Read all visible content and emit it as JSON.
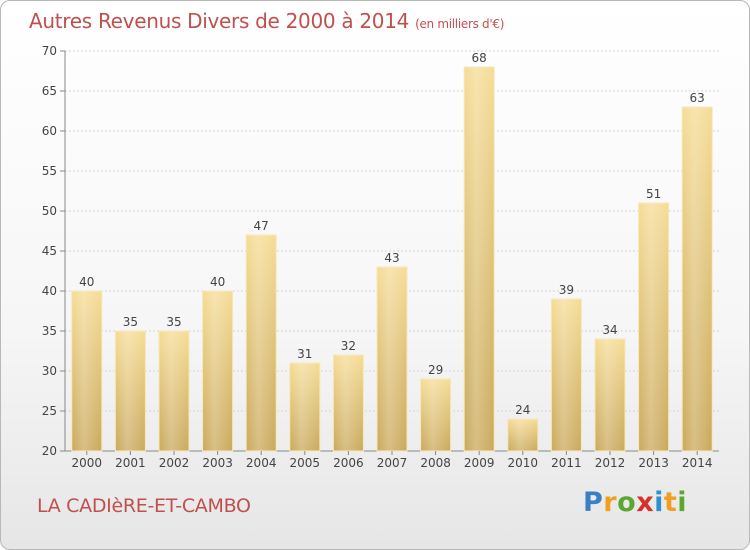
{
  "chart_data": {
    "type": "bar",
    "title": "Autres Revenus Divers de 2000 à 2014",
    "subtitle": "(en milliers d'€)",
    "categories": [
      "2000",
      "2001",
      "2002",
      "2003",
      "2004",
      "2005",
      "2006",
      "2007",
      "2008",
      "2009",
      "2010",
      "2011",
      "2012",
      "2013",
      "2014"
    ],
    "values": [
      40,
      35,
      35,
      40,
      47,
      31,
      32,
      43,
      29,
      68,
      24,
      39,
      34,
      51,
      63
    ],
    "ylim": [
      20,
      70
    ],
    "yticks": [
      20,
      25,
      30,
      35,
      40,
      45,
      50,
      55,
      60,
      65,
      70
    ],
    "grid": true,
    "bar_color": "#e8c97a",
    "title_color": "#c0504d"
  },
  "footer": {
    "place_name": "LA CADIèRE-ET-CAMBO",
    "logo_letters": [
      "P",
      "r",
      "o",
      "x",
      "i",
      "t",
      "i"
    ],
    "logo_colors": [
      "#3a7fc4",
      "#f0a020",
      "#5aa832",
      "#d9302c",
      "#2f8fd0",
      "#f0a020",
      "#5aa832"
    ]
  }
}
